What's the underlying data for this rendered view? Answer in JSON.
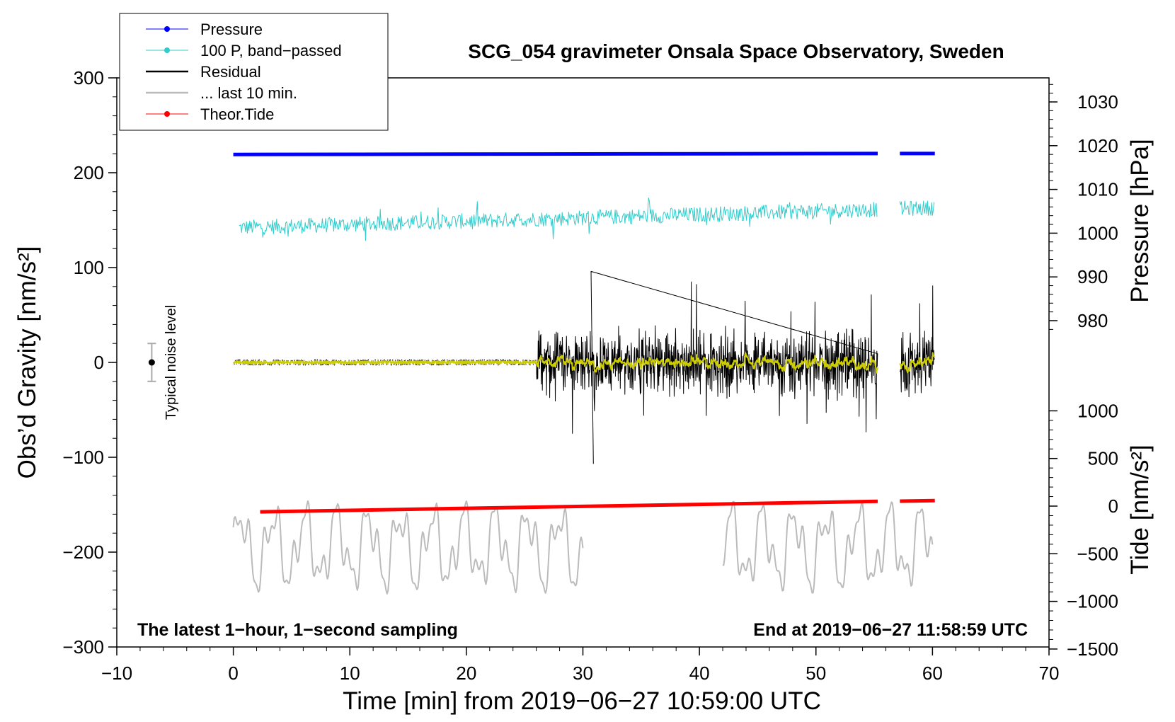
{
  "chart_data": {
    "type": "line",
    "title": "SCG_054 gravimeter Onsala Space Observatory, Sweden",
    "xlabel": "Time [min] from 2019−06−27 10:59:00 UTC",
    "ylabel_left": "Obs’d Gravity [nm/s²]",
    "ylabel_right_top": "Pressure [hPa]",
    "ylabel_right_bottom": "Tide [nm/s²]",
    "xlim": [
      -10,
      70
    ],
    "ylim_left": [
      -300,
      300
    ],
    "x_ticks": [
      -10,
      0,
      10,
      20,
      30,
      40,
      50,
      60,
      70
    ],
    "x_tick_labels": [
      "−10",
      "0",
      "10",
      "20",
      "30",
      "40",
      "50",
      "60",
      "70"
    ],
    "y_left_ticks": [
      300,
      200,
      100,
      0,
      -100,
      -200,
      -300
    ],
    "y_left_tick_labels": [
      "300",
      "200",
      "100",
      "0",
      "−100",
      "−200",
      "−300"
    ],
    "pressure_axis": {
      "ticks": [
        1030,
        1020,
        1010,
        1000,
        990,
        980
      ],
      "tick_labels": [
        "1030",
        "1020",
        "1010",
        "1000",
        "990",
        "980"
      ]
    },
    "tide_axis": {
      "ticks": [
        1000,
        500,
        0,
        -500,
        -1000,
        -1500
      ],
      "tick_labels": [
        "1000",
        "500",
        "0",
        "−500",
        "−1000",
        "−1500"
      ]
    },
    "legend": {
      "position": "top-left",
      "entries": [
        {
          "label": "Pressure",
          "color": "#0000ff",
          "marker": true
        },
        {
          "label": "100 P, band−passed",
          "color": "#33cccc",
          "marker": true
        },
        {
          "label": "Residual",
          "color": "#000000",
          "marker": false
        },
        {
          "label": "... last 10 min.",
          "color": "#bbbbbb",
          "marker": false
        },
        {
          "label": "Theor.Tide",
          "color": "#ff0000",
          "marker": true
        }
      ]
    },
    "series": [
      {
        "name": "Pressure",
        "unit": "hPa",
        "color": "#0000ff",
        "segments": [
          {
            "x_start": 0,
            "x_end": 55.3,
            "y_start": 1018.0,
            "y_end": 1018.2
          },
          {
            "x_start": 57.2,
            "x_end": 60.2,
            "y_start": 1018.2,
            "y_end": 1018.2
          }
        ]
      },
      {
        "name": "100 P, band−passed",
        "unit": "nm/s² (left axis)",
        "color": "#33cccc",
        "baseline_start": 142,
        "baseline_end": 163,
        "amplitude_typical": 8,
        "amplitude_max": 22,
        "segments": [
          [
            0.5,
            55.3
          ],
          [
            57.2,
            60.2
          ]
        ]
      },
      {
        "name": "Residual",
        "unit": "nm/s²",
        "color": "#000000",
        "quiet_until_min": 26,
        "quiet_amplitude": 3,
        "active_amplitude_typical": 35,
        "max": 96,
        "min": -107,
        "segments": [
          [
            0,
            55.3
          ],
          [
            57.2,
            60.2
          ]
        ]
      },
      {
        "name": "last 10 min. (smoothed residual)",
        "color": "#cccc00",
        "amplitude_typical": 8
      },
      {
        "name": "... last 10 min.",
        "unit": "nm/s² (left axis)",
        "color": "#bbbbbb",
        "center": -195,
        "amplitude_typical": 30,
        "max": -120,
        "min": -250,
        "segments": [
          [
            0,
            30
          ],
          [
            42,
            60
          ]
        ]
      },
      {
        "name": "Theor.Tide",
        "unit": "nm/s²",
        "color": "#ff0000",
        "segments": [
          {
            "x_start": 2.3,
            "x_end": 55.3,
            "y_start": -60,
            "y_end": 50
          },
          {
            "x_start": 57.2,
            "x_end": 60.2,
            "y_start": 52,
            "y_end": 58
          }
        ]
      }
    ],
    "noise_indicator": {
      "x": -7,
      "y": 0,
      "error": 20,
      "label": "Typical noise level"
    },
    "annotations": {
      "bottom_left": "The latest 1−hour, 1−second sampling",
      "bottom_right": "End at 2019−06−27 11:58:59 UTC"
    },
    "colors": {
      "pressure": "#0000ff",
      "bandpass": "#33cccc",
      "residual": "#000000",
      "smoothed": "#cccc00",
      "last10": "#bbbbbb",
      "tide": "#ff0000"
    }
  }
}
